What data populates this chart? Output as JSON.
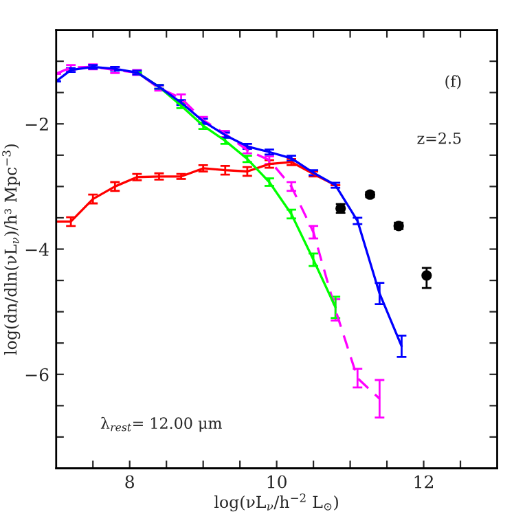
{
  "chart_data": {
    "type": "line",
    "xlabel": "log(νL$_{ν}$/h$^{−2}$ L$_{⊙}$)",
    "ylabel": "log(dn/dln(νL$_{ν}$)/h³ Mpc$^{−3}$)",
    "annotations": [
      "(f)",
      "z=2.5",
      "λ$_{rest}$= 12.00 μm"
    ],
    "xlim": [
      7,
      13
    ],
    "ylim": [
      -7.5,
      -0.5
    ],
    "xticks": [
      {
        "value": 7.5,
        "label": null
      },
      8,
      {
        "value": 8.5,
        "label": null
      },
      {
        "value": 9,
        "label": null
      },
      {
        "value": 9.5,
        "label": null
      },
      10,
      {
        "value": 10.5,
        "label": null
      },
      {
        "value": 11,
        "label": null
      },
      {
        "value": 11.5,
        "label": null
      },
      12,
      {
        "value": 12.5,
        "label": null
      }
    ],
    "yticks": [
      {
        "value": -7,
        "label": null
      },
      {
        "value": -6.5,
        "label": null
      },
      -6,
      {
        "value": -5.5,
        "label": null
      },
      {
        "value": -5,
        "label": null
      },
      {
        "value": -4.5,
        "label": null
      },
      -4,
      {
        "value": -3.5,
        "label": null
      },
      {
        "value": -3,
        "label": null
      },
      {
        "value": -2.5,
        "label": null
      },
      -2,
      {
        "value": -1.5,
        "label": null
      },
      {
        "value": -1,
        "label": null
      }
    ],
    "grid": false,
    "legend": false,
    "series": [
      {
        "color": "#ff0000",
        "line_style": "solid",
        "marker": "none",
        "x": [
          7.0,
          7.2,
          7.5,
          7.8,
          8.1,
          8.4,
          8.7,
          9.0,
          9.3,
          9.6,
          9.9,
          10.2,
          10.5,
          10.8
        ],
        "values": [
          -3.56,
          -3.56,
          -3.2,
          -3.0,
          -2.85,
          -2.84,
          -2.84,
          -2.71,
          -2.74,
          -2.76,
          -2.64,
          -2.61,
          -2.8,
          -2.98
        ],
        "errors": [
          null,
          0.07,
          0.07,
          0.07,
          0.05,
          0.05,
          0.04,
          0.05,
          0.07,
          0.07,
          0.06,
          0.05,
          0.04,
          null
        ]
      },
      {
        "color": "#ff00ff",
        "line_style": "dashed",
        "marker": "none",
        "x": [
          7.0,
          7.2,
          7.5,
          7.8,
          8.1,
          8.4,
          8.7,
          9.0,
          9.3,
          9.6,
          9.9,
          10.2,
          10.5,
          10.8,
          11.1,
          11.4
        ],
        "values": [
          -1.2,
          -1.1,
          -1.09,
          -1.14,
          -1.18,
          -1.43,
          -1.59,
          -1.94,
          -2.16,
          -2.42,
          -2.58,
          -3.0,
          -3.73,
          -4.97,
          -6.06,
          -6.39
        ],
        "errors": [
          null,
          0.04,
          0.04,
          0.05,
          0.04,
          0.04,
          0.06,
          0.05,
          0.05,
          0.05,
          0.06,
          0.07,
          0.1,
          0.17,
          0.15,
          0.3
        ]
      },
      {
        "color": "#00ff00",
        "line_style": "solid",
        "marker": "none",
        "x": [
          8.1,
          8.4,
          8.7,
          9.0,
          9.3,
          9.6,
          9.9,
          10.2,
          10.5,
          10.8
        ],
        "values": [
          -1.18,
          -1.41,
          -1.71,
          -2.03,
          -2.27,
          -2.56,
          -2.93,
          -3.44,
          -4.17,
          -4.93
        ],
        "errors": [
          null,
          0.03,
          0.04,
          0.05,
          0.05,
          0.05,
          0.06,
          0.07,
          0.1,
          0.17
        ]
      },
      {
        "color": "#0000ff",
        "line_style": "solid",
        "marker": "none",
        "x": [
          7.0,
          7.2,
          7.5,
          7.8,
          8.1,
          8.4,
          8.7,
          9.0,
          9.3,
          9.6,
          9.9,
          10.2,
          10.5,
          10.8,
          11.1,
          11.4,
          11.7
        ],
        "values": [
          -1.32,
          -1.14,
          -1.09,
          -1.12,
          -1.18,
          -1.41,
          -1.66,
          -1.96,
          -2.18,
          -2.36,
          -2.45,
          -2.55,
          -2.78,
          -2.98,
          -3.55,
          -4.71,
          -5.55
        ],
        "errors": [
          null,
          0.03,
          0.03,
          0.03,
          0.03,
          0.03,
          0.04,
          0.04,
          0.04,
          0.04,
          0.04,
          0.04,
          0.04,
          0.04,
          0.05,
          0.17,
          0.17
        ]
      },
      {
        "type": "scatter",
        "color": "#000000",
        "marker": "circle",
        "x": [
          10.87,
          11.27,
          11.66,
          12.04
        ],
        "values": [
          -3.35,
          -3.13,
          -3.63,
          -4.42
        ],
        "errors": [
          0.07,
          0.04,
          0.05,
          [
            -4.62,
            -4.3
          ]
        ]
      }
    ]
  }
}
